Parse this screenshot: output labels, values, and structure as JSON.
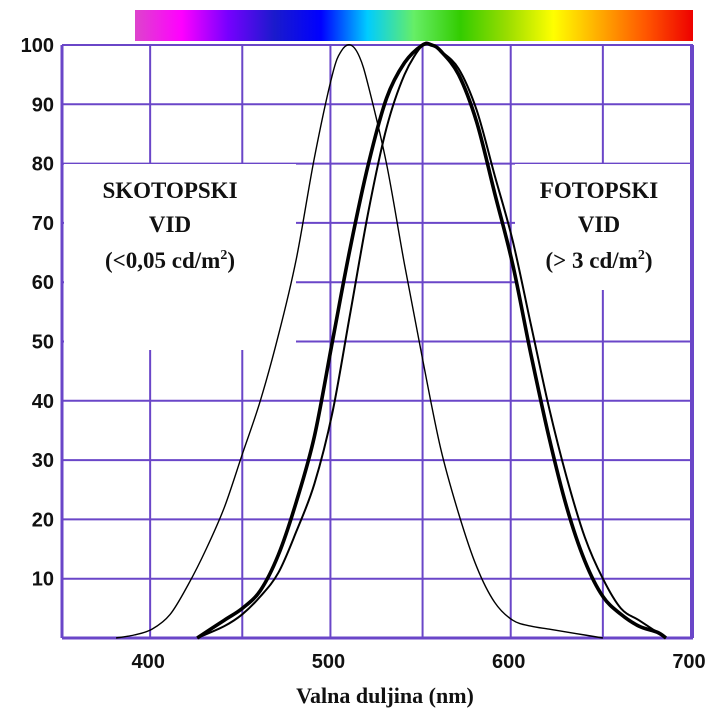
{
  "chart_data": {
    "type": "line",
    "xlabel": "Valna duljina (nm)",
    "ylabel": "",
    "xlim": [
      350,
      700
    ],
    "ylim": [
      0,
      100
    ],
    "x_ticks": [
      "400",
      "500",
      "600",
      "700"
    ],
    "y_ticks": [
      "10",
      "20",
      "30",
      "40",
      "50",
      "60",
      "70",
      "80",
      "90",
      "100"
    ],
    "grid": true,
    "spectrum_colors": [
      "#dd44cc",
      "#ff00ff",
      "#7700ff",
      "#1a1acc",
      "#0000ff",
      "#00ccff",
      "#66ee66",
      "#33cc00",
      "#99dd00",
      "#ffff00",
      "#ffaa00",
      "#ff5500",
      "#ee0000"
    ],
    "series": [
      {
        "style": "thin",
        "x": [
          380,
          390,
          400,
          410,
          420,
          430,
          440,
          450,
          460,
          470,
          480,
          490,
          500,
          505,
          510,
          515,
          520,
          530,
          540,
          550,
          560,
          570,
          580,
          590,
          600,
          610,
          620,
          630,
          640,
          650
        ],
        "y": [
          0,
          0.5,
          1.5,
          4,
          9,
          15,
          22,
          31,
          40,
          51,
          64,
          81,
          95,
          99,
          100,
          98,
          93,
          80,
          63,
          47,
          32,
          21,
          12,
          6,
          3,
          2,
          1.5,
          1,
          0.5,
          0
        ]
      },
      {
        "style": "thick",
        "x": [
          425,
          440,
          450,
          460,
          470,
          480,
          490,
          500,
          510,
          520,
          530,
          540,
          550,
          555,
          560,
          570,
          580,
          590,
          600,
          610,
          620,
          630,
          640,
          650,
          660,
          670,
          680,
          685
        ],
        "y": [
          0,
          3,
          5,
          8,
          14,
          23,
          34,
          50,
          66,
          80,
          91,
          97,
          100,
          100,
          99,
          95,
          87,
          75,
          63,
          48,
          34,
          22,
          13,
          7,
          4,
          2,
          1,
          0
        ]
      },
      {
        "style": "medium",
        "x": [
          425,
          440,
          450,
          460,
          470,
          480,
          490,
          500,
          510,
          520,
          530,
          540,
          550,
          555,
          560,
          570,
          580,
          590,
          600,
          610,
          620,
          630,
          640,
          650,
          660,
          670,
          680,
          685
        ],
        "y": [
          0,
          2,
          4,
          7,
          11,
          18,
          26,
          38,
          55,
          72,
          86,
          95,
          100,
          100,
          99,
          96,
          89,
          78,
          67,
          53,
          39,
          27,
          17,
          10,
          5,
          3,
          1,
          0
        ]
      }
    ],
    "annotations": [
      {
        "line1": "SKOTOPSKI",
        "line2": "VID",
        "line3": "(<0,05 cd/m",
        "sup": "2",
        "close": ")"
      },
      {
        "line1": "FOTOPSKI",
        "line2": "VID",
        "line3": "(> 3 cd/m",
        "sup": "2",
        "close": ")"
      }
    ]
  }
}
